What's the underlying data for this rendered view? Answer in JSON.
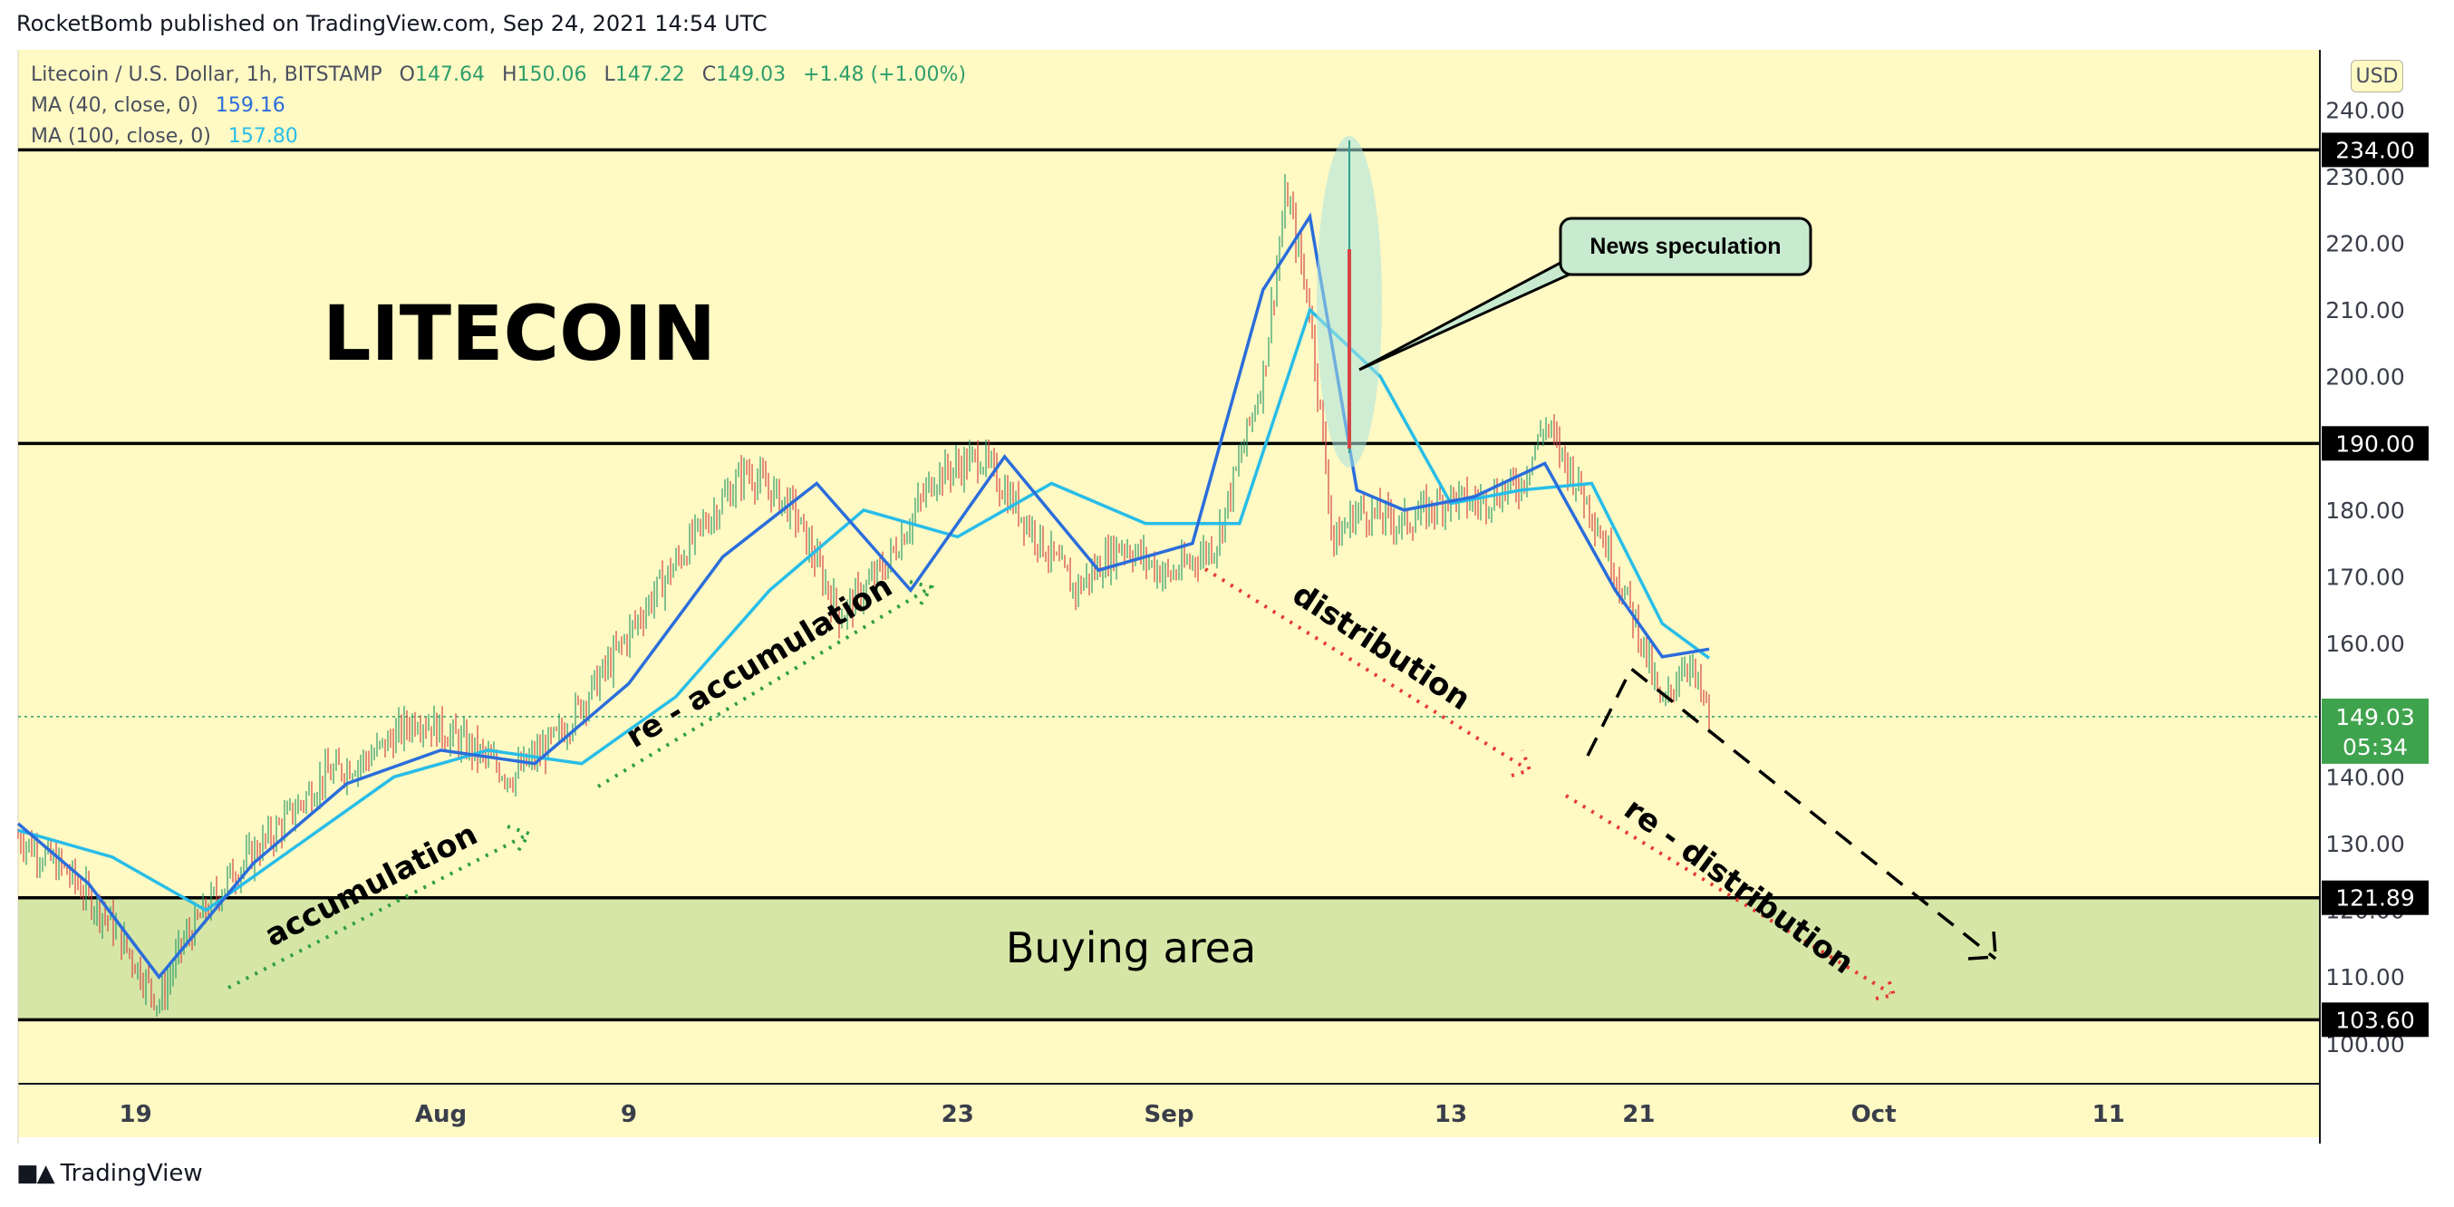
{
  "header": {
    "publisher_line": "RocketBomb published on TradingView.com, Sep 24, 2021 14:54 UTC"
  },
  "legend": {
    "symbol": "Litecoin / U.S. Dollar, 1h, BITSTAMP",
    "o_label": "O",
    "o": "147.64",
    "h_label": "H",
    "h": "150.06",
    "l_label": "L",
    "l": "147.22",
    "c_label": "C",
    "c": "149.03",
    "change": "+1.48 (+1.00%)",
    "ma40_label": "MA (40, close, 0)",
    "ma40": "159.16",
    "ma100_label": "MA (100, close, 0)",
    "ma100": "157.80"
  },
  "currency_button": "USD",
  "footer": {
    "brand": "TradingView"
  },
  "colors": {
    "bg": "#fff9c4",
    "buy_zone": "#d6e6a6",
    "ma40": "#2b6ddb",
    "ma100": "#28bde8",
    "up": "#2e9e6b",
    "down": "#d64545",
    "price_badge": "#3fa34d",
    "distribution": "#e53935",
    "accumulation": "#2f9e44"
  },
  "chart_data": {
    "type": "line",
    "title": "LITECOIN",
    "yaxis_ticks": [
      100,
      110,
      120,
      130,
      140,
      150,
      160,
      170,
      180,
      190,
      200,
      210,
      220,
      230,
      240
    ],
    "ylim": [
      94,
      249
    ],
    "xaxis_ticks": [
      "19",
      "Aug",
      "9",
      "23",
      "Sep",
      "13",
      "21",
      "Oct",
      "11"
    ],
    "xlim": [
      "2021-07-14",
      "2021-10-20"
    ],
    "price_label": "149.03",
    "countdown": "05:34",
    "levels": [
      {
        "value": 234.0,
        "label": "234.00"
      },
      {
        "value": 190.0,
        "label": "190.00"
      },
      {
        "value": 121.89,
        "label": "121.89"
      },
      {
        "value": 103.6,
        "label": "103.60"
      }
    ],
    "zone": {
      "label": "Buying area",
      "from": 103.6,
      "to": 121.89
    },
    "series": [
      {
        "name": "Litecoin / U.S. Dollar",
        "x": [
          "2021-07-14",
          "2021-07-16",
          "2021-07-18",
          "2021-07-20",
          "2021-07-21",
          "2021-07-23",
          "2021-07-25",
          "2021-07-27",
          "2021-07-29",
          "2021-07-31",
          "2021-08-02",
          "2021-08-04",
          "2021-08-06",
          "2021-08-08",
          "2021-08-10",
          "2021-08-12",
          "2021-08-14",
          "2021-08-16",
          "2021-08-18",
          "2021-08-20",
          "2021-08-22",
          "2021-08-24",
          "2021-08-26",
          "2021-08-28",
          "2021-08-30",
          "2021-09-01",
          "2021-09-03",
          "2021-09-05",
          "2021-09-06",
          "2021-09-07",
          "2021-09-08",
          "2021-09-09",
          "2021-09-11",
          "2021-09-13",
          "2021-09-14",
          "2021-09-16",
          "2021-09-17",
          "2021-09-19",
          "2021-09-21",
          "2021-09-22",
          "2021-09-23",
          "2021-09-24"
        ],
        "y": [
          131,
          126,
          118,
          106,
          115,
          125,
          132,
          140,
          143,
          149,
          145,
          140,
          146,
          156,
          167,
          177,
          186,
          180,
          164,
          172,
          185,
          188,
          178,
          168,
          175,
          170,
          175,
          200,
          228,
          210,
          175,
          180,
          178,
          182,
          181,
          184,
          193,
          180,
          162,
          150,
          158,
          149.03
        ]
      },
      {
        "name": "MA (40, close, 0)",
        "x": [
          "2021-07-14",
          "2021-07-17",
          "2021-07-20",
          "2021-07-24",
          "2021-07-28",
          "2021-08-01",
          "2021-08-05",
          "2021-08-09",
          "2021-08-13",
          "2021-08-17",
          "2021-08-21",
          "2021-08-25",
          "2021-08-29",
          "2021-09-02",
          "2021-09-05",
          "2021-09-07",
          "2021-09-09",
          "2021-09-11",
          "2021-09-14",
          "2021-09-17",
          "2021-09-20",
          "2021-09-22",
          "2021-09-24"
        ],
        "y": [
          133,
          124,
          110,
          127,
          139,
          144,
          142,
          154,
          173,
          184,
          168,
          188,
          171,
          175,
          213,
          224,
          183,
          180,
          182,
          187,
          168,
          158,
          159.16
        ]
      },
      {
        "name": "MA (100, close, 0)",
        "x": [
          "2021-07-14",
          "2021-07-18",
          "2021-07-22",
          "2021-07-26",
          "2021-07-30",
          "2021-08-03",
          "2021-08-07",
          "2021-08-11",
          "2021-08-15",
          "2021-08-19",
          "2021-08-23",
          "2021-08-27",
          "2021-08-31",
          "2021-09-04",
          "2021-09-07",
          "2021-09-10",
          "2021-09-13",
          "2021-09-16",
          "2021-09-19",
          "2021-09-22",
          "2021-09-24"
        ],
        "y": [
          132,
          128,
          120,
          130,
          140,
          144,
          142,
          152,
          168,
          180,
          176,
          184,
          178,
          178,
          210,
          200,
          181,
          183,
          184,
          163,
          157.8
        ]
      }
    ],
    "annotations": [
      {
        "text": "LITECOIN",
        "type": "title"
      },
      {
        "text": "News speculation",
        "type": "callout"
      },
      {
        "text": "accumulation",
        "type": "arrow-label"
      },
      {
        "text": "re - accumulation",
        "type": "arrow-label"
      },
      {
        "text": "distribution",
        "type": "arrow-label"
      },
      {
        "text": "re - distribution",
        "type": "arrow-label"
      }
    ]
  }
}
